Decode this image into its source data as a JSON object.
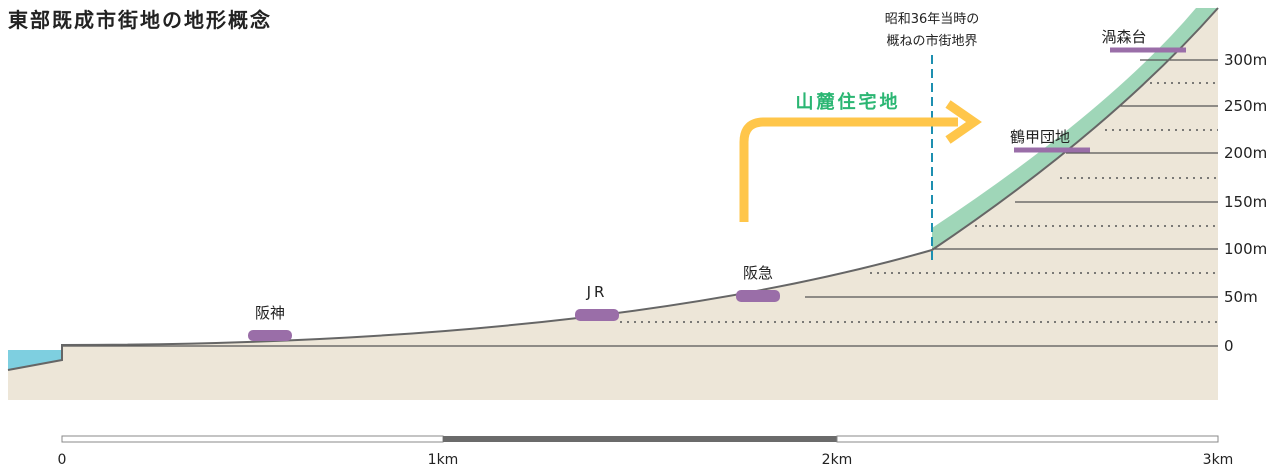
{
  "title": "東部既成市街地の地形概念",
  "boundary_label": [
    "昭和36年当時の",
    "概ねの市街地界"
  ],
  "arrow_label": "山麓住宅地",
  "stations": [
    {
      "name": "阪神"
    },
    {
      "name": "JR"
    },
    {
      "name": "阪急"
    }
  ],
  "places": [
    {
      "name": "鶴甲団地"
    },
    {
      "name": "渦森台"
    }
  ],
  "elevation_ticks": [
    "300m",
    "250m",
    "200m",
    "150m",
    "100m",
    "50m",
    "0"
  ],
  "scale": {
    "labels": [
      "0",
      "1km",
      "2km",
      "3km"
    ]
  },
  "colors": {
    "ground": "#ede6d8",
    "water": "#7ecfe0",
    "slope_band": "#9fd6b8",
    "markers": "#9a6ea8",
    "boundary": "#1d8fb0",
    "arrow": "#ffc64a",
    "arrow_text": "#2bb673"
  }
}
